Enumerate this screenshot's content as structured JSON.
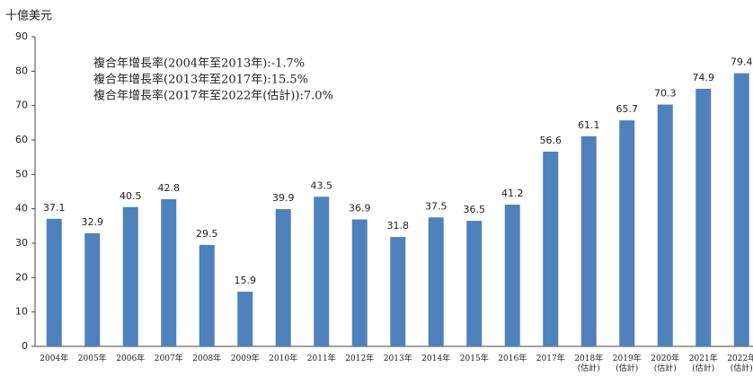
{
  "chart_data": {
    "type": "bar",
    "ylabel": "十億美元",
    "annotations": [
      "複合年增長率(2004年至2013年):-1.7%",
      "複合年增長率(2013年至2017年):15.5%",
      "複合年增長率(2017年至2022年(估計)):7.0%"
    ],
    "categories": [
      "2004年",
      "2005年",
      "2006年",
      "2007年",
      "2008年",
      "2009年",
      "2010年",
      "2011年",
      "2012年",
      "2013年",
      "2014年",
      "2015年",
      "2016年",
      "2017年",
      "2018年\n(估計)",
      "2019年\n(估計)",
      "2020年\n(估計)",
      "2021年\n(估計)",
      "2022年\n(估計)"
    ],
    "values": [
      37.1,
      32.9,
      40.5,
      42.8,
      29.5,
      15.9,
      39.9,
      43.5,
      36.9,
      31.8,
      37.5,
      36.5,
      41.2,
      56.6,
      61.1,
      65.7,
      70.3,
      74.9,
      79.4
    ],
    "color": "#4f81bd",
    "ylim": [
      0,
      90
    ],
    "yticks": [
      0,
      10,
      20,
      30,
      40,
      50,
      60,
      70,
      80,
      90
    ],
    "grid": false
  }
}
